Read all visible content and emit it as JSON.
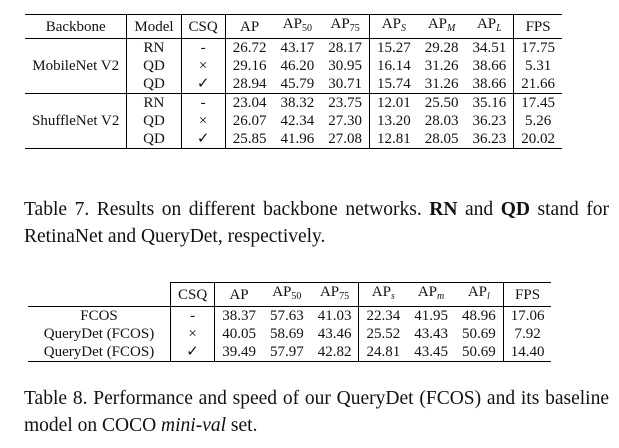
{
  "table7": {
    "headers": [
      "Backbone",
      "Model",
      "CSQ",
      "AP",
      "AP",
      "AP",
      "AP",
      "AP",
      "AP",
      "FPS"
    ],
    "header_subs": [
      "",
      "",
      "",
      "",
      "50",
      "75",
      "S",
      "M",
      "L",
      ""
    ],
    "groups": [
      {
        "backbone": "MobileNet V2",
        "rows": [
          {
            "model": "RN",
            "csq": "-",
            "vals": [
              "26.72",
              "43.17",
              "28.17",
              "15.27",
              "29.28",
              "34.51",
              "17.75"
            ]
          },
          {
            "model": "QD",
            "csq": "×",
            "vals": [
              "29.16",
              "46.20",
              "30.95",
              "16.14",
              "31.26",
              "38.66",
              "5.31"
            ]
          },
          {
            "model": "QD",
            "csq": "✓",
            "vals": [
              "28.94",
              "45.79",
              "30.71",
              "15.74",
              "31.26",
              "38.66",
              "21.66"
            ]
          }
        ]
      },
      {
        "backbone": "ShuffleNet V2",
        "rows": [
          {
            "model": "RN",
            "csq": "-",
            "vals": [
              "23.04",
              "38.32",
              "23.75",
              "12.01",
              "25.50",
              "35.16",
              "17.45"
            ]
          },
          {
            "model": "QD",
            "csq": "×",
            "vals": [
              "26.07",
              "42.34",
              "27.30",
              "13.20",
              "28.03",
              "36.23",
              "5.26"
            ]
          },
          {
            "model": "QD",
            "csq": "✓",
            "vals": [
              "25.85",
              "41.96",
              "27.08",
              "12.81",
              "28.05",
              "36.23",
              "20.02"
            ]
          }
        ]
      }
    ]
  },
  "caption7": {
    "p1": "Table 7.  Results on different backbone networks. ",
    "b1": "RN",
    "p2": " and ",
    "b2": "QD",
    "p3": " stand for RetinaNet and QueryDet, respectively."
  },
  "table8": {
    "headers": [
      "",
      "CSQ",
      "AP",
      "AP",
      "AP",
      "AP",
      "AP",
      "AP",
      "FPS"
    ],
    "header_subs": [
      "",
      "",
      "",
      "50",
      "75",
      "s",
      "m",
      "l",
      ""
    ],
    "rows": [
      {
        "name": "FCOS",
        "csq": "-",
        "vals": [
          "38.37",
          "57.63",
          "41.03",
          "22.34",
          "41.95",
          "48.96",
          "17.06"
        ]
      },
      {
        "name": "QueryDet (FCOS)",
        "csq": "×",
        "vals": [
          "40.05",
          "58.69",
          "43.46",
          "25.52",
          "43.43",
          "50.69",
          "7.92"
        ]
      },
      {
        "name": "QueryDet (FCOS)",
        "csq": "✓",
        "vals": [
          "39.49",
          "57.97",
          "42.82",
          "24.81",
          "43.45",
          "50.69",
          "14.40"
        ]
      }
    ]
  },
  "caption8": {
    "p1": "Table 8.  Performance and speed of our QueryDet (FCOS) and its baseline model on COCO ",
    "i1": "mini-val",
    "p2": " set."
  }
}
